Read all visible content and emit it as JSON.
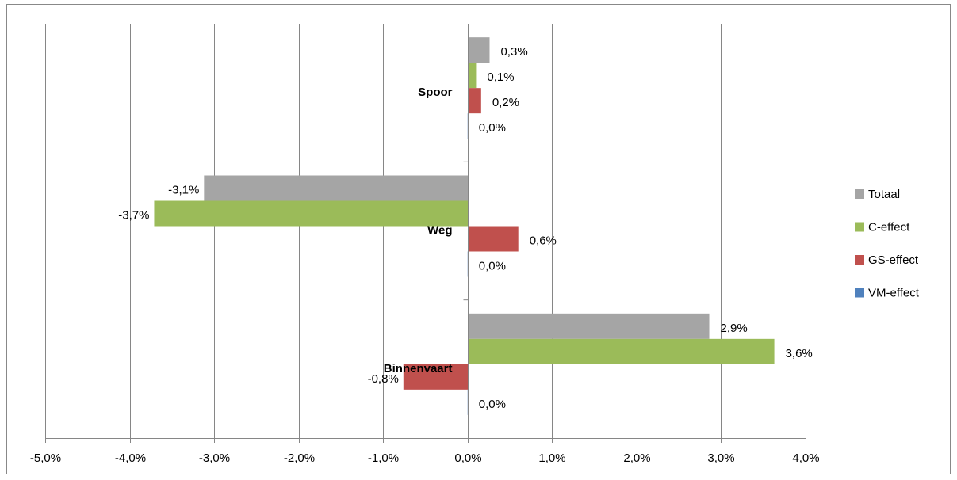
{
  "chart_data": {
    "type": "hbar",
    "categories": [
      "Spoor",
      "Weg",
      "Binnenvaart"
    ],
    "series": [
      {
        "name": "Totaal",
        "color": "#a5a5a5",
        "values": [
          0.26,
          -3.12,
          2.86
        ],
        "value_labels": [
          "0,3%",
          "-3,1%",
          "2,9%"
        ]
      },
      {
        "name": "C-effect",
        "color": "#9bbb59",
        "values": [
          0.1,
          -3.71,
          3.63
        ],
        "value_labels": [
          "0,1%",
          "-3,7%",
          "3,6%"
        ]
      },
      {
        "name": "GS-effect",
        "color": "#c0504d",
        "values": [
          0.16,
          0.6,
          -0.76
        ],
        "value_labels": [
          "0,2%",
          "0,6%",
          "-0,8%"
        ]
      },
      {
        "name": "VM-effect",
        "color": "#4f81bd",
        "values": [
          0.0,
          0.0,
          0.0
        ],
        "value_labels": [
          "0,0%",
          "0,0%",
          "0,0%"
        ]
      }
    ],
    "xlim": [
      -5,
      4
    ],
    "xticks": [
      {
        "value": -5,
        "label": "-5,0%"
      },
      {
        "value": -4,
        "label": "-4,0%"
      },
      {
        "value": -3,
        "label": "-3,0%"
      },
      {
        "value": -2,
        "label": "-2,0%"
      },
      {
        "value": -1,
        "label": "-1,0%"
      },
      {
        "value": 0,
        "label": "0,0%"
      },
      {
        "value": 1,
        "label": "1,0%"
      },
      {
        "value": 2,
        "label": "2,0%"
      },
      {
        "value": 3,
        "label": "3,0%"
      },
      {
        "value": 4,
        "label": "4,0%"
      }
    ],
    "grid": true,
    "legend": "right"
  }
}
